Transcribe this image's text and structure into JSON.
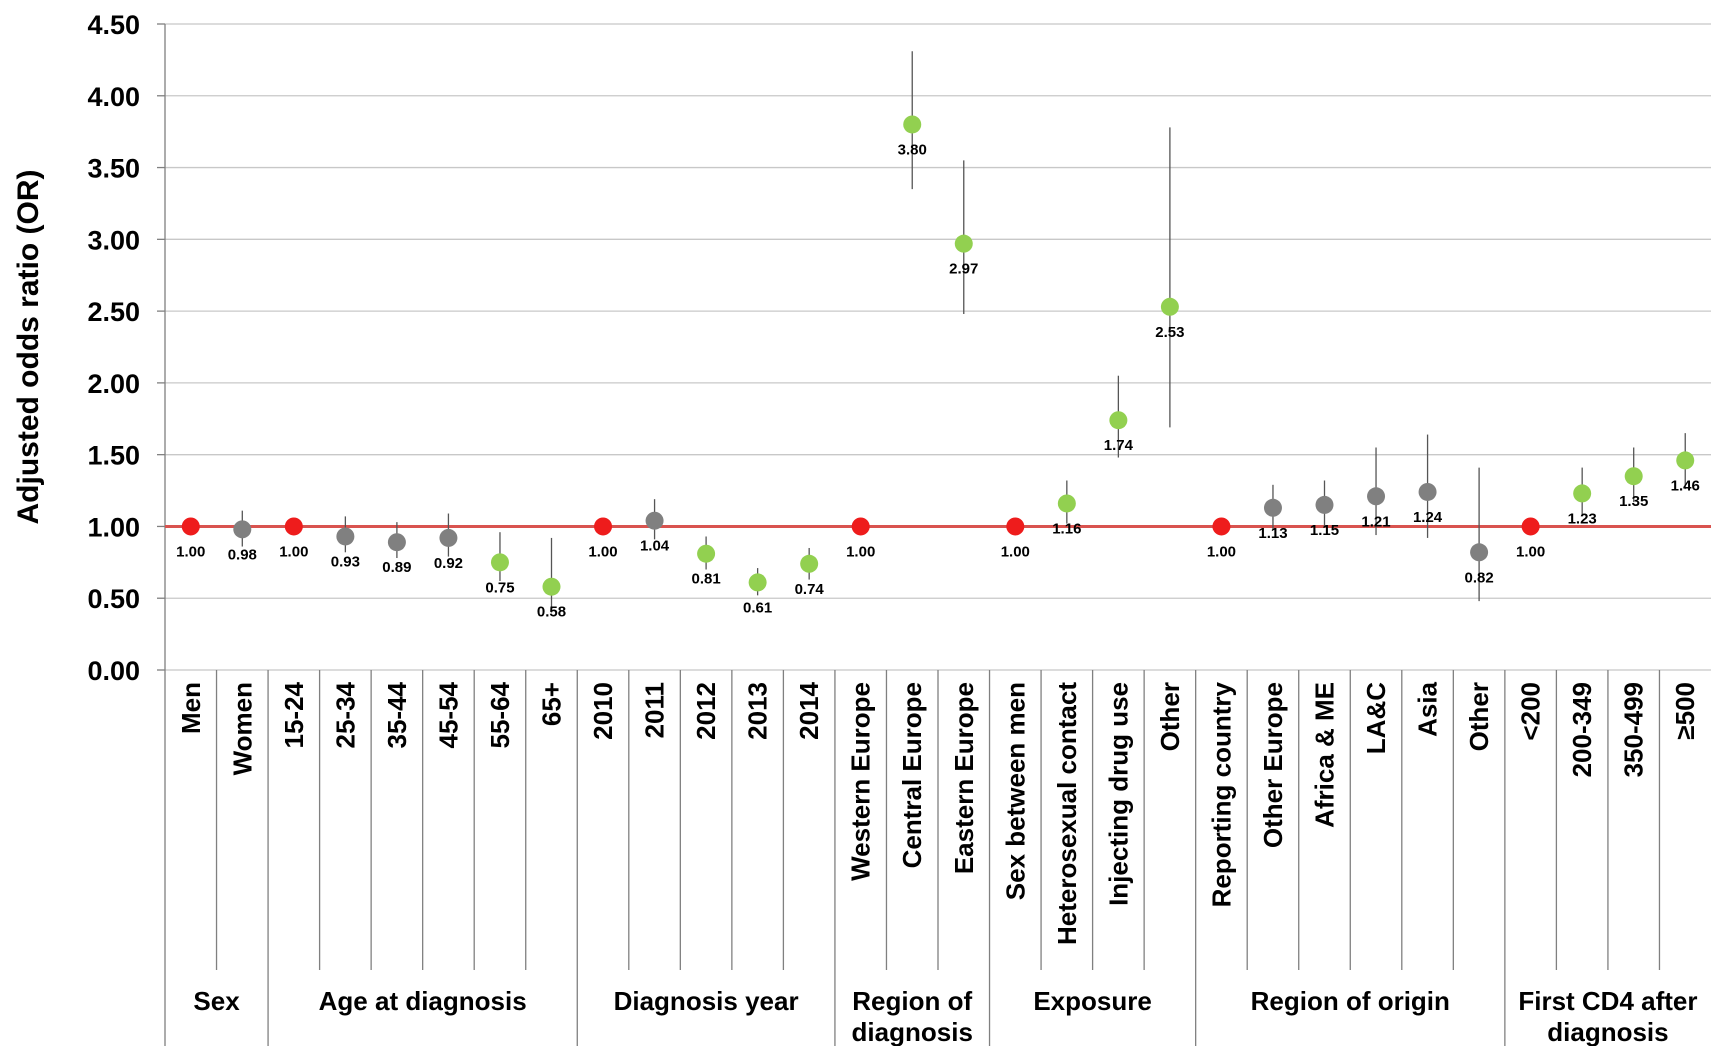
{
  "chart_data": {
    "type": "scatter",
    "title": "",
    "ylabel": "Adjusted odds ratio (OR)",
    "xlabel": "",
    "ylim": [
      0,
      4.5
    ],
    "yticks": [
      "0.00",
      "0.50",
      "1.00",
      "1.50",
      "2.00",
      "2.50",
      "3.00",
      "3.50",
      "4.00",
      "4.50"
    ],
    "reference_line": 1.0,
    "grid": true,
    "colors": {
      "reference": "#ee1c1c",
      "significant": "#92d050",
      "not_significant": "#808080",
      "refline": "#d9534f"
    },
    "points": [
      {
        "category": "Men",
        "group": "Sex",
        "value": 1.0,
        "label": "1.00",
        "status": "reference"
      },
      {
        "category": "Women",
        "group": "Sex",
        "value": 0.98,
        "label": "0.98",
        "ci": [
          0.86,
          1.11
        ],
        "status": "not_significant"
      },
      {
        "category": "15-24",
        "group": "Age at diagnosis",
        "value": 1.0,
        "label": "1.00",
        "status": "reference"
      },
      {
        "category": "25-34",
        "group": "Age at diagnosis",
        "value": 0.93,
        "label": "0.93",
        "ci": [
          0.82,
          1.07
        ],
        "status": "not_significant"
      },
      {
        "category": "35-44",
        "group": "Age at diagnosis",
        "value": 0.89,
        "label": "0.89",
        "ci": [
          0.78,
          1.03
        ],
        "status": "not_significant"
      },
      {
        "category": "45-54",
        "group": "Age at diagnosis",
        "value": 0.92,
        "label": "0.92",
        "ci": [
          0.79,
          1.09
        ],
        "status": "not_significant"
      },
      {
        "category": "55-64",
        "group": "Age at diagnosis",
        "value": 0.75,
        "label": "0.75",
        "ci": [
          0.62,
          0.96
        ],
        "status": "significant"
      },
      {
        "category": "65+",
        "group": "Age at diagnosis",
        "value": 0.58,
        "label": "0.58",
        "ci": [
          0.4,
          0.92
        ],
        "status": "significant"
      },
      {
        "category": "2010",
        "group": "Diagnosis year",
        "value": 1.0,
        "label": "1.00",
        "status": "reference"
      },
      {
        "category": "2011",
        "group": "Diagnosis year",
        "value": 1.04,
        "label": "1.04",
        "ci": [
          0.91,
          1.19
        ],
        "status": "not_significant"
      },
      {
        "category": "2012",
        "group": "Diagnosis year",
        "value": 0.81,
        "label": "0.81",
        "ci": [
          0.7,
          0.93
        ],
        "status": "significant"
      },
      {
        "category": "2013",
        "group": "Diagnosis year",
        "value": 0.61,
        "label": "0.61",
        "ci": [
          0.52,
          0.71
        ],
        "status": "significant"
      },
      {
        "category": "2014",
        "group": "Diagnosis year",
        "value": 0.74,
        "label": "0.74",
        "ci": [
          0.63,
          0.85
        ],
        "status": "significant"
      },
      {
        "category": "Western Europe",
        "group": "Region of diagnosis",
        "value": 1.0,
        "label": "1.00",
        "status": "reference"
      },
      {
        "category": "Central Europe",
        "group": "Region of diagnosis",
        "value": 3.8,
        "label": "3.80",
        "ci": [
          3.35,
          4.31
        ],
        "status": "significant"
      },
      {
        "category": "Eastern Europe",
        "group": "Region of diagnosis",
        "value": 2.97,
        "label": "2.97",
        "ci": [
          2.48,
          3.55
        ],
        "status": "significant"
      },
      {
        "category": "Sex between men",
        "group": "Exposure",
        "value": 1.0,
        "label": "1.00",
        "status": "reference"
      },
      {
        "category": "Heterosexual contact",
        "group": "Exposure",
        "value": 1.16,
        "label": "1.16",
        "ci": [
          1.02,
          1.32
        ],
        "status": "significant"
      },
      {
        "category": "Injecting drug use",
        "group": "Exposure",
        "value": 1.74,
        "label": "1.74",
        "ci": [
          1.48,
          2.05
        ],
        "status": "significant"
      },
      {
        "category": "Other",
        "group": "Exposure",
        "value": 2.53,
        "label": "2.53",
        "ci": [
          1.69,
          3.78
        ],
        "status": "significant"
      },
      {
        "category": "Reporting country",
        "group": "Region of origin",
        "value": 1.0,
        "label": "1.00",
        "status": "reference"
      },
      {
        "category": "Other Europe",
        "group": "Region of origin",
        "value": 1.13,
        "label": "1.13",
        "ci": [
          0.98,
          1.29
        ],
        "status": "not_significant"
      },
      {
        "category": "Africa & ME",
        "group": "Region of origin",
        "value": 1.15,
        "label": "1.15",
        "ci": [
          0.99,
          1.32
        ],
        "status": "not_significant"
      },
      {
        "category": "LA&C",
        "group": "Region of origin",
        "value": 1.21,
        "label": "1.21",
        "ci": [
          0.94,
          1.55
        ],
        "status": "not_significant"
      },
      {
        "category": "Asia",
        "group": "Region of origin",
        "value": 1.24,
        "label": "1.24",
        "ci": [
          0.92,
          1.64
        ],
        "status": "not_significant"
      },
      {
        "category": "Other",
        "group": "Region of origin",
        "value": 0.82,
        "label": "0.82",
        "ci": [
          0.48,
          1.41
        ],
        "status": "not_significant"
      },
      {
        "category": "<200",
        "group": "First CD4 after diagnosis",
        "value": 1.0,
        "label": "1.00",
        "status": "reference"
      },
      {
        "category": "200-349",
        "group": "First CD4 after diagnosis",
        "value": 1.23,
        "label": "1.23",
        "ci": [
          1.08,
          1.41
        ],
        "status": "significant"
      },
      {
        "category": "350-499",
        "group": "First CD4 after diagnosis",
        "value": 1.35,
        "label": "1.35",
        "ci": [
          1.17,
          1.55
        ],
        "status": "significant"
      },
      {
        "category": "≥500",
        "group": "First CD4 after diagnosis",
        "value": 1.46,
        "label": "1.46",
        "ci": [
          1.26,
          1.65
        ],
        "status": "significant"
      }
    ],
    "groups": [
      {
        "lines": [
          "Sex"
        ],
        "count": 2
      },
      {
        "lines": [
          "Age at diagnosis"
        ],
        "count": 6
      },
      {
        "lines": [
          "Diagnosis year"
        ],
        "count": 5
      },
      {
        "lines": [
          "Region of",
          "diagnosis"
        ],
        "count": 3
      },
      {
        "lines": [
          "Exposure"
        ],
        "count": 4
      },
      {
        "lines": [
          "Region of origin"
        ],
        "count": 6
      },
      {
        "lines": [
          "First CD4 after",
          "diagnosis"
        ],
        "count": 4
      }
    ]
  }
}
